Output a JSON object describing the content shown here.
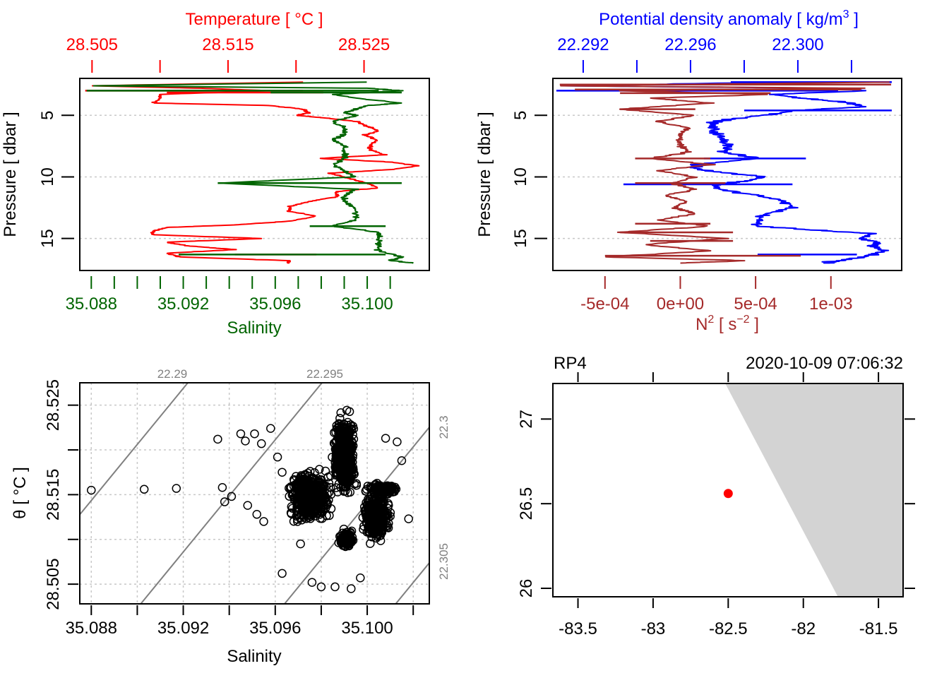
{
  "chart_data": [
    {
      "id": "profile-ts",
      "type": "line",
      "title": "",
      "top_axis": {
        "label": "Temperature [ °C ]",
        "color": "#ff0000",
        "ticks": [
          28.505,
          28.51,
          28.515,
          28.52,
          28.525
        ],
        "tick_labels": [
          "28.505",
          "",
          "28.515",
          "",
          "28.525"
        ],
        "range": [
          28.5041,
          28.5298
        ]
      },
      "bottom_axis": {
        "label": "Salinity",
        "color": "#006400",
        "ticks": [
          35.088,
          35.089,
          35.09,
          35.091,
          35.092,
          35.093,
          35.094,
          35.095,
          35.096,
          35.097,
          35.098,
          35.099,
          35.1,
          35.101
        ],
        "tick_labels": [
          "35.088",
          "",
          "",
          "",
          "35.092",
          "",
          "",
          "",
          "35.096",
          "",
          "",
          "",
          "35.100",
          ""
        ],
        "range": [
          35.0875,
          35.1027
        ]
      },
      "ylabel": "Pressure [ dbar ]",
      "y_ticks": [
        5,
        10,
        15
      ],
      "y_range": [
        17.6,
        2.0
      ],
      "grid": "horizontal dotted",
      "series": [
        {
          "name": "Temperature",
          "color": "#ff0000",
          "pressure": [
            2.3,
            2.6,
            2.8,
            3.0,
            3.3,
            3.6,
            4.0,
            4.2,
            4.5,
            4.8,
            5.0,
            5.2,
            5.5,
            5.8,
            6.0,
            6.3,
            6.6,
            7.0,
            7.4,
            7.8,
            8.2,
            8.5,
            8.8,
            9.1,
            9.4,
            9.7,
            10.0,
            10.3,
            10.6,
            10.9,
            11.2,
            11.6,
            12.0,
            12.4,
            12.8,
            13.2,
            13.6,
            13.9,
            14.1,
            14.4,
            14.7,
            15.0,
            15.3,
            15.6,
            15.9,
            16.2,
            16.5,
            16.8,
            17.0
          ],
          "values": [
            28.5205,
            28.505,
            28.513,
            28.518,
            28.51,
            28.51,
            28.5095,
            28.518,
            28.5205,
            28.521,
            28.52,
            28.522,
            28.5245,
            28.525,
            28.5255,
            28.526,
            28.525,
            28.526,
            28.5255,
            28.5255,
            28.5265,
            28.5218,
            28.527,
            28.529,
            28.527,
            28.5225,
            28.5235,
            28.5245,
            28.5255,
            28.526,
            28.523,
            28.523,
            28.521,
            28.5195,
            28.5195,
            28.5215,
            28.5195,
            28.5155,
            28.5105,
            28.5095,
            28.5095,
            28.5175,
            28.5105,
            28.512,
            28.5155,
            28.5105,
            28.5115,
            28.5195,
            28.5195
          ]
        },
        {
          "name": "Salinity",
          "color": "#006400",
          "pressure": [
            2.3,
            2.6,
            2.8,
            3.0,
            3.3,
            3.6,
            4.0,
            4.2,
            4.5,
            4.8,
            5.0,
            5.5,
            6.0,
            6.5,
            7.0,
            7.5,
            8.0,
            8.5,
            9.0,
            9.5,
            10.0,
            10.5,
            11.0,
            11.5,
            12.0,
            12.5,
            13.0,
            13.5,
            14.0,
            14.5,
            15.0,
            15.5,
            16.0,
            16.5,
            16.8,
            17.0
          ],
          "values": [
            35.1,
            35.088,
            35.1,
            35.1015,
            35.0985,
            35.0995,
            35.1015,
            35.1,
            35.0995,
            35.099,
            35.0995,
            35.0985,
            35.099,
            35.099,
            35.0985,
            35.099,
            35.099,
            35.099,
            35.0985,
            35.099,
            35.0995,
            35.0935,
            35.0995,
            35.099,
            35.099,
            35.0995,
            35.0995,
            35.0995,
            35.0985,
            35.1005,
            35.1005,
            35.1005,
            35.1005,
            35.1015,
            35.101,
            35.102
          ]
        }
      ]
    },
    {
      "id": "profile-density-n2",
      "type": "line",
      "top_axis": {
        "label": "Potential density anomaly [ kg/m³ ]",
        "label_base": "Potential density anomaly [ kg/m",
        "label_sup": "3",
        "label_end": " ]",
        "color": "#0000ff",
        "ticks": [
          22.292,
          22.294,
          22.296,
          22.298,
          22.3,
          22.302
        ],
        "tick_labels": [
          "22.292",
          "",
          "22.296",
          "",
          "22.300",
          ""
        ],
        "range": [
          22.29087,
          22.30387
        ]
      },
      "bottom_axis": {
        "label": "N² [ s⁻² ]",
        "label_base": "N",
        "label_sup": "2",
        "label_mid": " [ s",
        "label_sup2": "−2",
        "label_end": " ]",
        "color": "#a52a2a",
        "ticks": [
          -0.0005,
          0,
          0.0005,
          0.001
        ],
        "tick_labels": [
          "-5e-04",
          "0e+00",
          "5e-04",
          "1e-03"
        ],
        "range": [
          -0.000846,
          0.00147
        ]
      },
      "ylabel": "Pressure [ dbar ]",
      "y_ticks": [
        5,
        10,
        15
      ],
      "y_range": [
        17.6,
        2.0
      ],
      "grid": "horizontal dotted",
      "series": [
        {
          "name": "Potential density anomaly",
          "color": "#0000ff",
          "pressure": [
            2.3,
            2.6,
            2.8,
            3.0,
            3.3,
            3.6,
            4.0,
            4.3,
            4.6,
            5.0,
            5.3,
            5.6,
            6.0,
            6.5,
            7.0,
            7.5,
            8.0,
            8.5,
            9.0,
            9.3,
            9.6,
            10.0,
            10.3,
            10.6,
            11.0,
            11.5,
            12.0,
            12.5,
            13.0,
            13.5,
            14.0,
            14.3,
            14.6,
            15.0,
            15.3,
            15.6,
            16.0,
            16.3,
            16.6,
            16.9,
            17.0
          ],
          "values": [
            22.2998,
            22.2912,
            22.3015,
            22.3025,
            22.299,
            22.3002,
            22.302,
            22.3025,
            22.3,
            22.2988,
            22.2975,
            22.2968,
            22.2968,
            22.297,
            22.2972,
            22.2975,
            22.2972,
            22.2985,
            22.2962,
            22.2962,
            22.297,
            22.2988,
            22.2982,
            22.297,
            22.297,
            22.2985,
            22.2995,
            22.2998,
            22.2988,
            22.2985,
            22.2985,
            22.3005,
            22.3028,
            22.3022,
            22.303,
            22.3028,
            22.3032,
            22.3028,
            22.3022,
            22.3012,
            22.3012
          ]
        },
        {
          "name": "N2",
          "color": "#a52a2a",
          "pressure": [
            2.3,
            2.6,
            2.8,
            3.0,
            3.3,
            3.6,
            4.0,
            4.5,
            5.0,
            5.5,
            6.0,
            6.5,
            7.0,
            7.5,
            8.0,
            8.5,
            9.0,
            9.5,
            10.0,
            10.5,
            11.0,
            11.5,
            12.0,
            12.5,
            13.0,
            13.5,
            14.0,
            14.5,
            15.0,
            15.5,
            16.0,
            16.5,
            16.8,
            17.0
          ],
          "values": [
            0.0014,
            -0.0008,
            0.0012,
            -0.0004,
            0.0006,
            -0.0002,
            0.0002,
            -0.0004,
            0.0001,
            -0.00015,
            5e-05,
            0.0,
            0.0,
            0.0,
            5e-05,
            -0.0002,
            0.0002,
            -0.00015,
            0.0001,
            -5e-05,
            0.0001,
            -0.0001,
            5e-05,
            -5e-05,
            0.0001,
            -0.00015,
            0.0002,
            -0.0004,
            0.0003,
            -0.00025,
            0.0002,
            -0.0005,
            0.00045,
            0.0
          ]
        }
      ]
    },
    {
      "id": "ts-diagram",
      "type": "scatter",
      "xlabel": "Salinity",
      "ylabel": "θ [ °C ]",
      "x_ticks": [
        35.088,
        35.09,
        35.092,
        35.094,
        35.096,
        35.098,
        35.1,
        35.102
      ],
      "x_tick_labels": [
        "35.088",
        "",
        "35.092",
        "",
        "35.096",
        "",
        "35.100",
        ""
      ],
      "x_range": [
        35.0875,
        35.1027
      ],
      "y_ticks": [
        28.505,
        28.51,
        28.515,
        28.52,
        28.525
      ],
      "y_tick_labels": [
        "28.505",
        "",
        "28.515",
        "",
        "28.525"
      ],
      "y_range": [
        28.5028,
        28.5275
      ],
      "grid": "dotted",
      "isopycnals": [
        {
          "label": "22.29",
          "position": "top"
        },
        {
          "label": "22.295",
          "position": "top"
        },
        {
          "label": "22.3",
          "position": "right"
        },
        {
          "label": "22.305",
          "position": "right"
        }
      ],
      "outliers": [
        [
          35.088,
          28.5155
        ],
        [
          35.0903,
          28.5156
        ],
        [
          35.0917,
          28.5157
        ],
        [
          35.0935,
          28.5212
        ],
        [
          35.0941,
          28.5148
        ],
        [
          35.0945,
          28.5218
        ],
        [
          35.0947,
          28.521
        ],
        [
          35.0951,
          28.5218
        ],
        [
          35.0954,
          28.5207
        ],
        [
          35.0958,
          28.5224
        ],
        [
          35.0948,
          28.5138
        ],
        [
          35.0952,
          28.5128
        ],
        [
          35.0955,
          28.512
        ],
        [
          35.0963,
          28.5062
        ],
        [
          35.0971,
          28.5095
        ],
        [
          35.0976,
          28.5052
        ],
        [
          35.098,
          28.5047
        ],
        [
          35.0986,
          28.5047
        ],
        [
          35.0993,
          28.5045
        ],
        [
          35.0997,
          28.5057
        ],
        [
          35.0937,
          28.5158
        ],
        [
          35.0938,
          28.5142
        ],
        [
          35.0963,
          28.5175
        ],
        [
          35.0961,
          28.5192
        ],
        [
          35.0991,
          28.5222
        ],
        [
          35.1008,
          28.5213
        ],
        [
          35.1013,
          28.5209
        ],
        [
          35.1018,
          28.5123
        ],
        [
          35.1015,
          28.5188
        ]
      ],
      "clusters": [
        {
          "s_center": 35.0975,
          "t_center": 28.5148,
          "s_spread": 0.0011,
          "t_spread": 0.0035,
          "n": 500
        },
        {
          "s_center": 35.099,
          "t_center": 28.5195,
          "s_spread": 0.0006,
          "t_spread": 0.0055,
          "n": 500
        },
        {
          "s_center": 35.1004,
          "t_center": 28.5125,
          "s_spread": 0.0007,
          "t_spread": 0.0032,
          "n": 350
        },
        {
          "s_center": 35.0991,
          "t_center": 28.51,
          "s_spread": 0.0004,
          "t_spread": 0.0012,
          "n": 120
        },
        {
          "s_center": 35.1007,
          "t_center": 28.5156,
          "s_spread": 0.0009,
          "t_spread": 0.0007,
          "n": 150
        }
      ]
    },
    {
      "id": "station-map",
      "type": "scatter",
      "title_left": "RP4",
      "title_right": "2020-10-09 07:06:32",
      "x_ticks": [
        -83.5,
        -83,
        -82.5,
        -82,
        -81.5
      ],
      "x_tick_labels": [
        "-83.5",
        "-83",
        "-82.5",
        "-82",
        "-81.5"
      ],
      "x_range": [
        -83.667,
        -81.336
      ],
      "y_ticks": [
        26,
        26.5,
        27
      ],
      "y_tick_labels": [
        "26",
        "26.5",
        "27"
      ],
      "y_range": [
        25.95,
        27.21
      ],
      "station": {
        "lon": -82.5,
        "lat": 26.56,
        "color": "#ff0000"
      },
      "land": {
        "color": "#d3d3d3",
        "polygon": [
          [
            -82.52,
            27.21
          ],
          [
            -81.336,
            27.21
          ],
          [
            -81.336,
            25.95
          ],
          [
            -81.77,
            25.95
          ]
        ]
      }
    }
  ]
}
